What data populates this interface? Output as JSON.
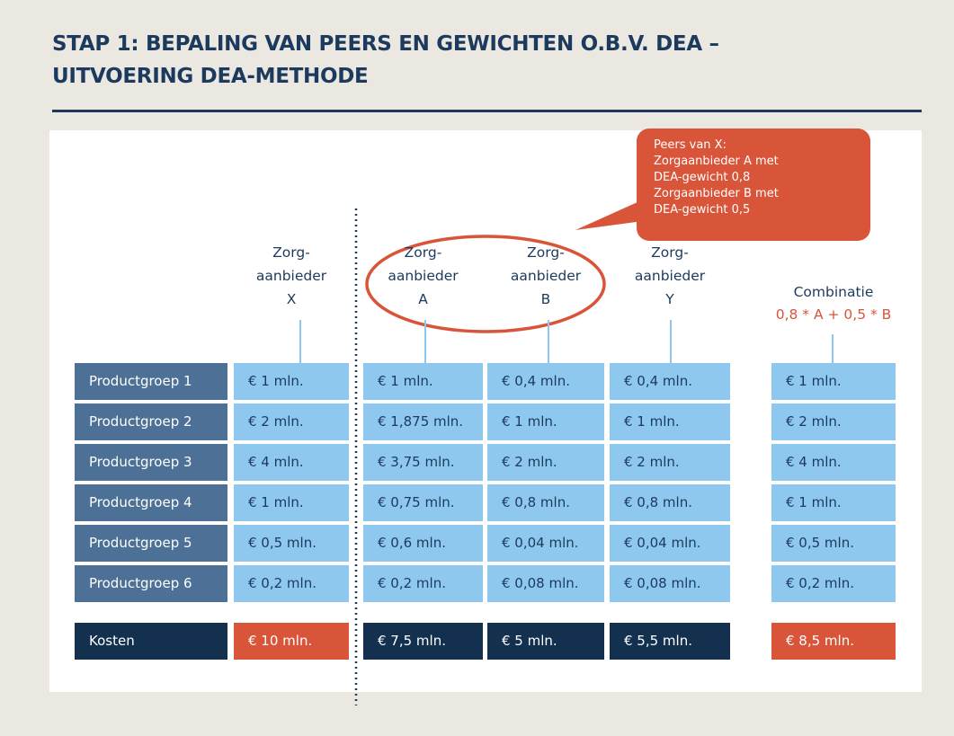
{
  "title": [
    "STAP 1: BEPALING VAN PEERS EN GEWICHTEN O.B.V. DEA –",
    "UITVOERING DEA-METHODE"
  ],
  "callout": [
    "Peers van X:",
    "Zorgaanbieder A met",
    "DEA-gewicht 0,8",
    "Zorgaanbieder B met",
    "DEA-gewicht 0,5"
  ],
  "table": {
    "columns": [
      {
        "lines": [
          "Zorg-",
          "aanbieder",
          "X"
        ]
      },
      {
        "lines": [
          "Zorg-",
          "aanbieder",
          "A"
        ]
      },
      {
        "lines": [
          "Zorg-",
          "aanbieder",
          "B"
        ]
      },
      {
        "lines": [
          "Zorg-",
          "aanbieder",
          "Y"
        ]
      },
      {
        "lines": [
          "Combinatie",
          "0,8 * A + 0,5 * B"
        ]
      }
    ],
    "rows": [
      [
        "Productgroep 1",
        "€ 1 mln.",
        "€ 1 mln.",
        "€ 0,4 mln.",
        "€ 0,4 mln.",
        "€ 1 mln."
      ],
      [
        "Productgroep 2",
        "€ 2 mln.",
        "€ 1,875 mln.",
        "€ 1 mln.",
        "€ 1 mln.",
        "€ 2 mln."
      ],
      [
        "Productgroep 3",
        "€ 4 mln.",
        "€ 3,75 mln.",
        "€ 2 mln.",
        "€ 2 mln.",
        "€ 4 mln."
      ],
      [
        "Productgroep 4",
        "€ 1 mln.",
        "€ 0,75 mln.",
        "€ 0,8 mln.",
        "€ 0,8 mln.",
        "€ 1 mln."
      ],
      [
        "Productgroep 5",
        "€ 0,5 mln.",
        "€ 0,6 mln.",
        "€ 0,04 mln.",
        "€ 0,04 mln.",
        "€ 0,5 mln."
      ],
      [
        "Productgroep 6",
        "€ 0,2 mln.",
        "€ 0,2 mln.",
        "€ 0,08 mln.",
        "€ 0,08 mln.",
        "€ 0,2 mln."
      ]
    ],
    "total": [
      "Kosten",
      "€ 10 mln.",
      "€ 7,5 mln.",
      "€ 5 mln.",
      "€ 5,5 mln.",
      "€ 8,5 mln."
    ]
  }
}
